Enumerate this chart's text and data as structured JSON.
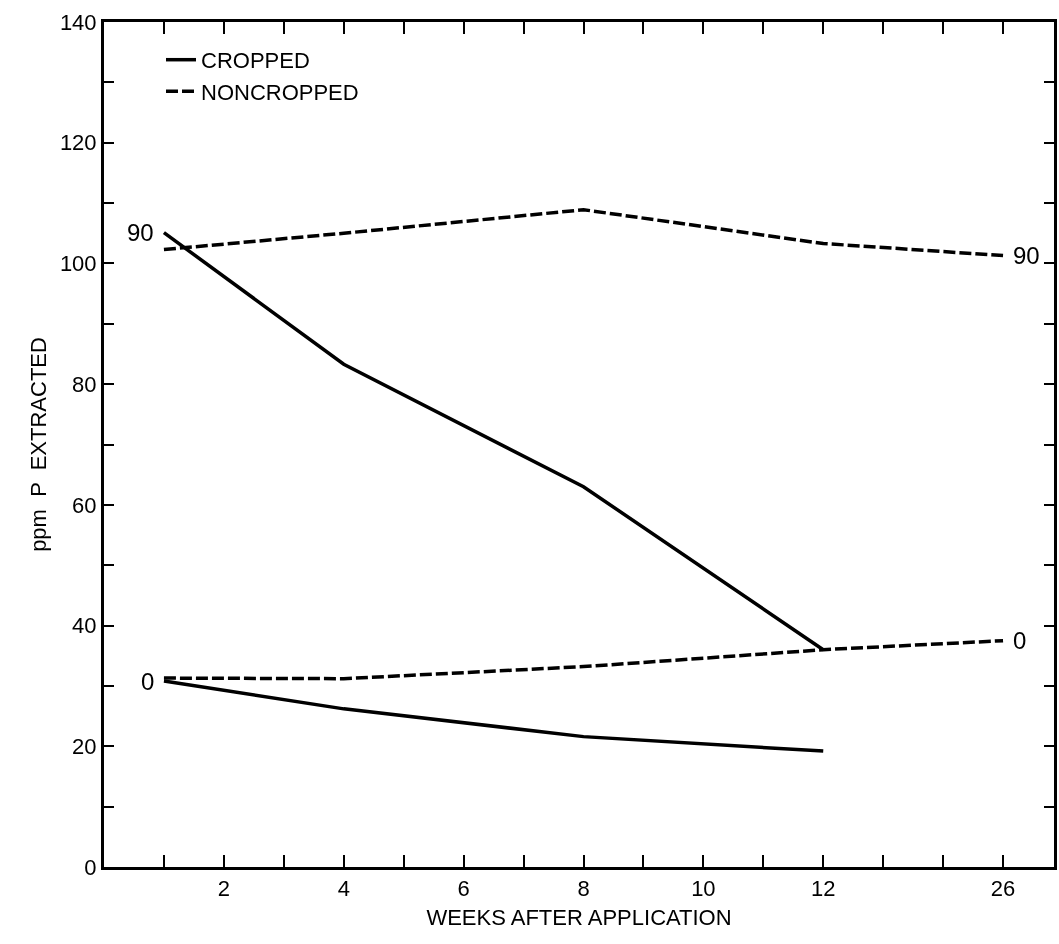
{
  "chart_data": {
    "type": "line",
    "xlabel": "WEEKS AFTER APPLICATION",
    "ylabel": "ppm  P  EXTRACTED",
    "categories": [
      null,
      "2",
      null,
      "4",
      null,
      "6",
      null,
      "8",
      null,
      "10",
      null,
      "12",
      null,
      null,
      "26"
    ],
    "ylim": [
      0,
      140
    ],
    "yticks": [
      0,
      {
        "value": 10,
        "label": null
      },
      20,
      {
        "value": 30,
        "label": null
      },
      40,
      {
        "value": 50,
        "label": null
      },
      60,
      {
        "value": 70,
        "label": null
      },
      80,
      {
        "value": 90,
        "label": null
      },
      100,
      {
        "value": 110,
        "label": null
      },
      120,
      {
        "value": 130,
        "label": null
      },
      140
    ],
    "legend": "top left",
    "series": [
      {
        "name": "CROPPED",
        "color": "#000000",
        "line_style": "solid",
        "values": [
          105.1,
          null,
          null,
          83.3,
          null,
          null,
          null,
          63.0,
          null,
          null,
          null,
          36.0,
          null,
          null,
          null
        ]
      },
      {
        "name": "NONCROPPED",
        "color": "#000000",
        "line_style": "dashed",
        "values": [
          102.3,
          null,
          null,
          105.0,
          null,
          null,
          null,
          108.9,
          null,
          null,
          null,
          103.3,
          null,
          null,
          101.3
        ]
      },
      {
        "color": "#000000",
        "line_style": "solid",
        "values": [
          30.8,
          null,
          null,
          26.2,
          null,
          null,
          null,
          21.6,
          null,
          null,
          null,
          19.2,
          null,
          null,
          null
        ]
      },
      {
        "color": "#000000",
        "line_style": "dashed",
        "values": [
          31.3,
          null,
          null,
          31.2,
          null,
          null,
          null,
          33.2,
          null,
          null,
          null,
          36.0,
          null,
          null,
          37.5
        ]
      }
    ],
    "annotations": [
      "90",
      "0",
      {
        "text": "90",
        "x": "26",
        "y": 101.3
      },
      {
        "text": "0",
        "x": "26",
        "y": 37.5
      }
    ]
  }
}
